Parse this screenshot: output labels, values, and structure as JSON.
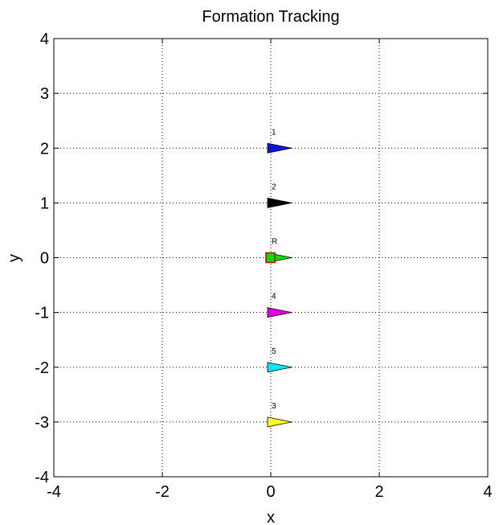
{
  "chart_data": {
    "type": "scatter",
    "title": "Formation Tracking",
    "xlabel": "x",
    "ylabel": "y",
    "xlim": [
      -4,
      4
    ],
    "ylim": [
      -4,
      4
    ],
    "xticks": [
      "-4",
      "-2",
      "0",
      "2",
      "4"
    ],
    "yticks": [
      "4",
      "3",
      "2",
      "1",
      "0",
      "-1",
      "-2",
      "-3",
      "-4"
    ],
    "grid": true,
    "grid_style": "dotted",
    "agents": [
      {
        "label": "1",
        "x": 0,
        "y": 2,
        "color": "#1010e0"
      },
      {
        "label": "2",
        "x": 0,
        "y": 1,
        "color": "#000000"
      },
      {
        "label": "R",
        "x": 0,
        "y": 0,
        "color": "#00e000",
        "reference_marker_color": "#c00000"
      },
      {
        "label": "4",
        "x": 0,
        "y": -1,
        "color": "#e000e0"
      },
      {
        "label": "5",
        "x": 0,
        "y": -2,
        "color": "#00e8f0"
      },
      {
        "label": "3",
        "x": 0,
        "y": -3,
        "color": "#ffff20"
      }
    ]
  }
}
